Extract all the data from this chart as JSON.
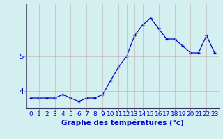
{
  "x": [
    0,
    1,
    2,
    3,
    4,
    5,
    6,
    7,
    8,
    9,
    10,
    11,
    12,
    13,
    14,
    15,
    16,
    17,
    18,
    19,
    20,
    21,
    22,
    23
  ],
  "y": [
    3.8,
    3.8,
    3.8,
    3.8,
    3.9,
    3.8,
    3.7,
    3.8,
    3.8,
    3.9,
    4.3,
    4.7,
    5.0,
    5.6,
    5.9,
    6.1,
    5.8,
    5.5,
    5.5,
    5.3,
    5.1,
    5.1,
    5.6,
    5.1
  ],
  "line_color": "#0000cc",
  "marker": "+",
  "marker_size": 3,
  "xlabel": "Graphe des températures (°c)",
  "xlim_min": -0.5,
  "xlim_max": 23.5,
  "ylim_min": 3.5,
  "ylim_max": 6.5,
  "yticks": [
    4,
    5
  ],
  "xticks": [
    0,
    1,
    2,
    3,
    4,
    5,
    6,
    7,
    8,
    9,
    10,
    11,
    12,
    13,
    14,
    15,
    16,
    17,
    18,
    19,
    20,
    21,
    22,
    23
  ],
  "xtick_labels": [
    "0",
    "1",
    "2",
    "3",
    "4",
    "5",
    "6",
    "7",
    "8",
    "9",
    "10",
    "11",
    "12",
    "13",
    "14",
    "15",
    "16",
    "17",
    "18",
    "19",
    "20",
    "21",
    "22",
    "23"
  ],
  "grid_color": "#bbbbbb",
  "bg_color": "#d4efef",
  "xlabel_color": "#0000cc",
  "xlabel_fontsize": 7.5,
  "tick_fontsize": 6.5,
  "ytick_fontsize": 7.5,
  "bottom_spine_color": "#333366",
  "left_spine_color": "#666688"
}
